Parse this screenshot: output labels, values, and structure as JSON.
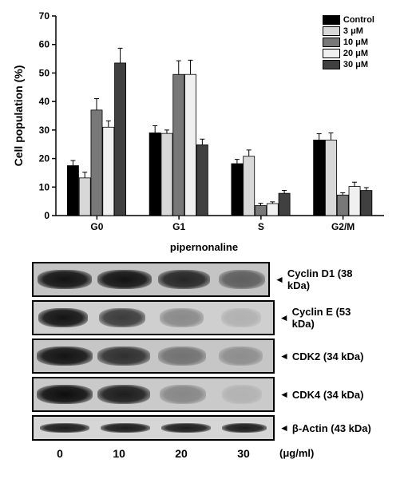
{
  "chart": {
    "type": "bar",
    "ylabel": "Cell population (%)",
    "ylabel_fontsize": 14,
    "ylim": [
      0,
      70
    ],
    "ytick_step": 10,
    "yticks": [
      0,
      10,
      20,
      30,
      40,
      50,
      60,
      70
    ],
    "groups": [
      "G0",
      "G1",
      "S",
      "G2/M"
    ],
    "series": [
      {
        "label": "Control",
        "color": "#000000"
      },
      {
        "label": "3 μM",
        "color": "#d8d8d8"
      },
      {
        "label": "10 μM",
        "color": "#787878"
      },
      {
        "label": "20 μM",
        "color": "#f0f0f0"
      },
      {
        "label": "30 μM",
        "color": "#404040"
      }
    ],
    "values": {
      "G0": [
        17.5,
        13.2,
        37.0,
        31.0,
        53.5
      ],
      "G1": [
        29.0,
        28.8,
        49.5,
        49.5,
        24.8
      ],
      "S": [
        18.2,
        20.8,
        3.5,
        4.2,
        7.8
      ],
      "G2/M": [
        26.5,
        26.5,
        7.2,
        10.2,
        8.8
      ]
    },
    "errors": {
      "G0": [
        1.8,
        2.0,
        4.0,
        2.2,
        5.2
      ],
      "G1": [
        2.5,
        1.2,
        4.8,
        5.0,
        2.0
      ],
      "S": [
        1.5,
        2.2,
        0.8,
        0.6,
        1.0
      ],
      "G2/M": [
        2.2,
        2.5,
        0.8,
        1.5,
        1.0
      ]
    },
    "bar_width": 0.8,
    "axis_color": "#000000",
    "tick_fontsize": 12,
    "background_color": "#ffffff",
    "bottom_label": "pipernonaline"
  },
  "blots": {
    "lanes": [
      0,
      10,
      20,
      30
    ],
    "lane_unit": "(μg/ml)",
    "rows": [
      {
        "label": "Cyclin D1 (38 kDa)",
        "bg": "#c4c4c4",
        "bands": [
          {
            "left": 5,
            "width": 68,
            "intensity": 0.95
          },
          {
            "left": 80,
            "width": 68,
            "intensity": 0.95
          },
          {
            "left": 156,
            "width": 65,
            "intensity": 0.85
          },
          {
            "left": 232,
            "width": 58,
            "intensity": 0.55
          }
        ]
      },
      {
        "label": "Cyclin E (53 kDa)",
        "bg": "#cfcfcf",
        "bands": [
          {
            "left": 6,
            "width": 62,
            "intensity": 0.95
          },
          {
            "left": 82,
            "width": 58,
            "intensity": 0.75
          },
          {
            "left": 158,
            "width": 55,
            "intensity": 0.35
          },
          {
            "left": 235,
            "width": 50,
            "intensity": 0.15
          }
        ]
      },
      {
        "label": "CDK2 (34 kDa)",
        "bg": "#c6c6c6",
        "bands": [
          {
            "left": 4,
            "width": 70,
            "intensity": 0.95
          },
          {
            "left": 80,
            "width": 66,
            "intensity": 0.8
          },
          {
            "left": 156,
            "width": 60,
            "intensity": 0.45
          },
          {
            "left": 232,
            "width": 55,
            "intensity": 0.3
          }
        ]
      },
      {
        "label": "CDK4 (34 kDa)",
        "bg": "#cacaca",
        "bands": [
          {
            "left": 4,
            "width": 70,
            "intensity": 0.98
          },
          {
            "left": 80,
            "width": 66,
            "intensity": 0.9
          },
          {
            "left": 158,
            "width": 58,
            "intensity": 0.35
          },
          {
            "left": 236,
            "width": 50,
            "intensity": 0.12
          }
        ]
      },
      {
        "label": "β-Actin (43 kDa)",
        "bg": "#d6d6d6",
        "thin": true,
        "bands": [
          {
            "left": 8,
            "width": 62,
            "intensity": 0.9
          },
          {
            "left": 84,
            "width": 62,
            "intensity": 0.9
          },
          {
            "left": 160,
            "width": 62,
            "intensity": 0.9
          },
          {
            "left": 236,
            "width": 56,
            "intensity": 0.9
          }
        ]
      }
    ]
  }
}
